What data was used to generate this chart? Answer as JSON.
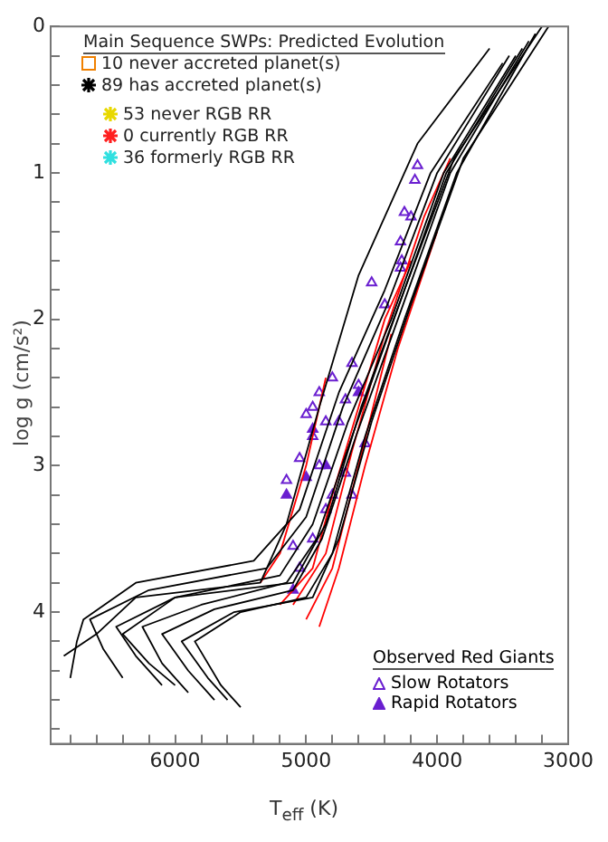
{
  "chart_data": {
    "type": "scatter",
    "xlabel": "T$_{eff}$ (K)",
    "ylabel": "log g (cm/s²)",
    "xlim": [
      6950,
      3000
    ],
    "ylim": [
      4.9,
      0
    ],
    "xticks": [
      {
        "value": 6800,
        "label": null
      },
      {
        "value": 6600,
        "label": null
      },
      {
        "value": 6400,
        "label": null
      },
      {
        "value": 6200,
        "label": null
      },
      6000,
      {
        "value": 5800,
        "label": null
      },
      {
        "value": 5600,
        "label": null
      },
      {
        "value": 5400,
        "label": null
      },
      {
        "value": 5200,
        "label": null
      },
      5000,
      {
        "value": 4800,
        "label": null
      },
      {
        "value": 4600,
        "label": null
      },
      {
        "value": 4400,
        "label": null
      },
      {
        "value": 4200,
        "label": null
      },
      4000,
      {
        "value": 3800,
        "label": null
      },
      {
        "value": 3600,
        "label": null
      },
      {
        "value": 3400,
        "label": null
      },
      {
        "value": 3200,
        "label": null
      },
      3000
    ],
    "yticks": [
      0,
      {
        "value": 0.2,
        "label": null
      },
      {
        "value": 0.4,
        "label": null
      },
      {
        "value": 0.6,
        "label": null
      },
      {
        "value": 0.8,
        "label": null
      },
      1,
      {
        "value": 1.2,
        "label": null
      },
      {
        "value": 1.4,
        "label": null
      },
      {
        "value": 1.6,
        "label": null
      },
      {
        "value": 1.8,
        "label": null
      },
      2,
      {
        "value": 2.2,
        "label": null
      },
      {
        "value": 2.4,
        "label": null
      },
      {
        "value": 2.6,
        "label": null
      },
      {
        "value": 2.8,
        "label": null
      },
      3,
      {
        "value": 3.2,
        "label": null
      },
      {
        "value": 3.4,
        "label": null
      },
      {
        "value": 3.6,
        "label": null
      },
      {
        "value": 3.8,
        "label": null
      },
      4,
      {
        "value": 4.2,
        "label": null
      },
      {
        "value": 4.4,
        "label": null
      },
      {
        "value": 4.6,
        "label": null
      },
      {
        "value": 4.8,
        "label": null
      }
    ],
    "grid": false,
    "legend": "bottom right",
    "legend_title": "Observed Red Giants",
    "annotations": [
      "Main Sequence SWPs: Predicted Evolution",
      "10 never accreted planet(s)",
      "89 has accreted planet(s)",
      "53 never RGB RR",
      "0 currently RGB RR",
      "36 formerly RGB RR"
    ],
    "series": [
      {
        "type": "line",
        "color": "#000000",
        "x": [
          5500,
          5650,
          5850,
          5500,
          5000,
          4800,
          4550,
          4250,
          3850,
          3250
        ],
        "values": [
          4.65,
          4.5,
          4.2,
          4.0,
          3.9,
          3.6,
          2.8,
          2.0,
          1.0,
          0.05
        ]
      },
      {
        "type": "line",
        "color": "#000000",
        "x": [
          5700,
          5900,
          6100,
          5700,
          5100,
          4880,
          4620,
          4300,
          3900,
          3300
        ],
        "values": [
          4.6,
          4.4,
          4.15,
          3.98,
          3.85,
          3.5,
          2.8,
          2.0,
          1.0,
          0.1
        ]
      },
      {
        "type": "line",
        "color": "#000000",
        "x": [
          5900,
          6100,
          6250,
          5800,
          5150,
          4920,
          4650,
          4330,
          3930,
          3350
        ],
        "values": [
          4.55,
          4.35,
          4.1,
          3.95,
          3.8,
          3.5,
          2.8,
          2.0,
          1.0,
          0.15
        ]
      },
      {
        "type": "line",
        "color": "#000000",
        "x": [
          6100,
          6300,
          6450,
          6000,
          5200,
          4950,
          4680,
          4350,
          3950,
          3400
        ],
        "values": [
          4.5,
          4.3,
          4.1,
          3.9,
          3.75,
          3.4,
          2.7,
          2.0,
          1.0,
          0.2
        ]
      },
      {
        "type": "line",
        "color": "#000000",
        "x": [
          6400,
          6550,
          6650,
          6200,
          5300,
          5000,
          4720,
          4380,
          4000,
          3450
        ],
        "values": [
          4.45,
          4.25,
          4.05,
          3.85,
          3.7,
          3.35,
          2.6,
          1.9,
          1.0,
          0.2
        ]
      },
      {
        "type": "line",
        "color": "#000000",
        "x": [
          6800,
          6750,
          6700,
          6300,
          5400,
          5050,
          4750,
          4400,
          4050,
          3500
        ],
        "values": [
          4.45,
          4.2,
          4.05,
          3.8,
          3.65,
          3.3,
          2.5,
          1.8,
          1.0,
          0.25
        ]
      },
      {
        "type": "line",
        "color": "#000000",
        "x": [
          5600,
          5750,
          5950,
          5550,
          4950,
          4750,
          4500,
          4200,
          3800,
          3150
        ],
        "values": [
          4.6,
          4.45,
          4.2,
          4.0,
          3.9,
          3.5,
          2.7,
          1.9,
          0.9,
          0.0
        ]
      },
      {
        "type": "line",
        "color": "#000000",
        "x": [
          6000,
          6200,
          6400,
          6000,
          5100,
          4850,
          4580,
          4250,
          3870,
          3200
        ],
        "values": [
          4.5,
          4.35,
          4.15,
          3.9,
          3.8,
          3.4,
          2.6,
          1.8,
          0.9,
          0.0
        ]
      },
      {
        "type": "line",
        "color": "#000000",
        "x": [
          6850,
          6600,
          6300,
          5350,
          5150,
          4900,
          4600,
          4150,
          3600
        ],
        "values": [
          4.3,
          4.15,
          3.9,
          3.8,
          3.4,
          2.6,
          1.7,
          0.8,
          0.15
        ]
      },
      {
        "type": "line",
        "color": "#ff0000",
        "x": [
          5350,
          5200,
          5000,
          4850
        ],
        "values": [
          3.8,
          3.6,
          3.0,
          2.4
        ]
      },
      {
        "type": "line",
        "color": "#ff0000",
        "x": [
          5200,
          4950,
          4800,
          4600,
          4400,
          4200
        ],
        "values": [
          3.95,
          3.7,
          3.2,
          2.6,
          2.0,
          1.6
        ]
      },
      {
        "type": "line",
        "color": "#ff0000",
        "x": [
          5100,
          4850,
          4650,
          4400,
          4100,
          3900
        ],
        "values": [
          3.95,
          3.6,
          2.9,
          2.1,
          1.3,
          0.9
        ]
      },
      {
        "type": "line",
        "color": "#ff0000",
        "x": [
          5000,
          4800,
          4600,
          4350
        ],
        "values": [
          4.05,
          3.7,
          3.0,
          2.1
        ]
      },
      {
        "type": "line",
        "color": "#ff0000",
        "x": [
          4900,
          4750,
          4550,
          4300,
          4000
        ],
        "values": [
          4.1,
          3.7,
          3.0,
          2.2,
          1.4
        ]
      },
      {
        "name": "Slow Rotators",
        "color": "#6a1fd0",
        "marker": "triangle",
        "x": [
          4150,
          4170,
          4200,
          4250,
          4280,
          4270,
          4280,
          4500,
          4400,
          4650,
          4600,
          4800,
          4900,
          4950,
          4850,
          5000,
          4700,
          4750,
          4950,
          5050,
          5150,
          4900,
          4800,
          4700,
          4550,
          4650,
          4850,
          4950,
          5050,
          5100
        ],
        "values": [
          0.95,
          1.05,
          1.3,
          1.27,
          1.47,
          1.6,
          1.65,
          1.75,
          1.9,
          2.3,
          2.45,
          2.4,
          2.5,
          2.6,
          2.7,
          2.65,
          2.55,
          2.7,
          2.8,
          2.95,
          3.1,
          3.0,
          3.2,
          3.05,
          2.85,
          3.2,
          3.3,
          3.5,
          3.7,
          3.55
        ]
      },
      {
        "name": "Rapid Rotators",
        "color": "#6a1fd0",
        "marker": "triangle",
        "x": [
          5000,
          5150,
          4950,
          4600,
          4850,
          5100
        ],
        "values": [
          3.08,
          3.2,
          2.75,
          2.5,
          3.0,
          3.85
        ]
      }
    ]
  }
}
